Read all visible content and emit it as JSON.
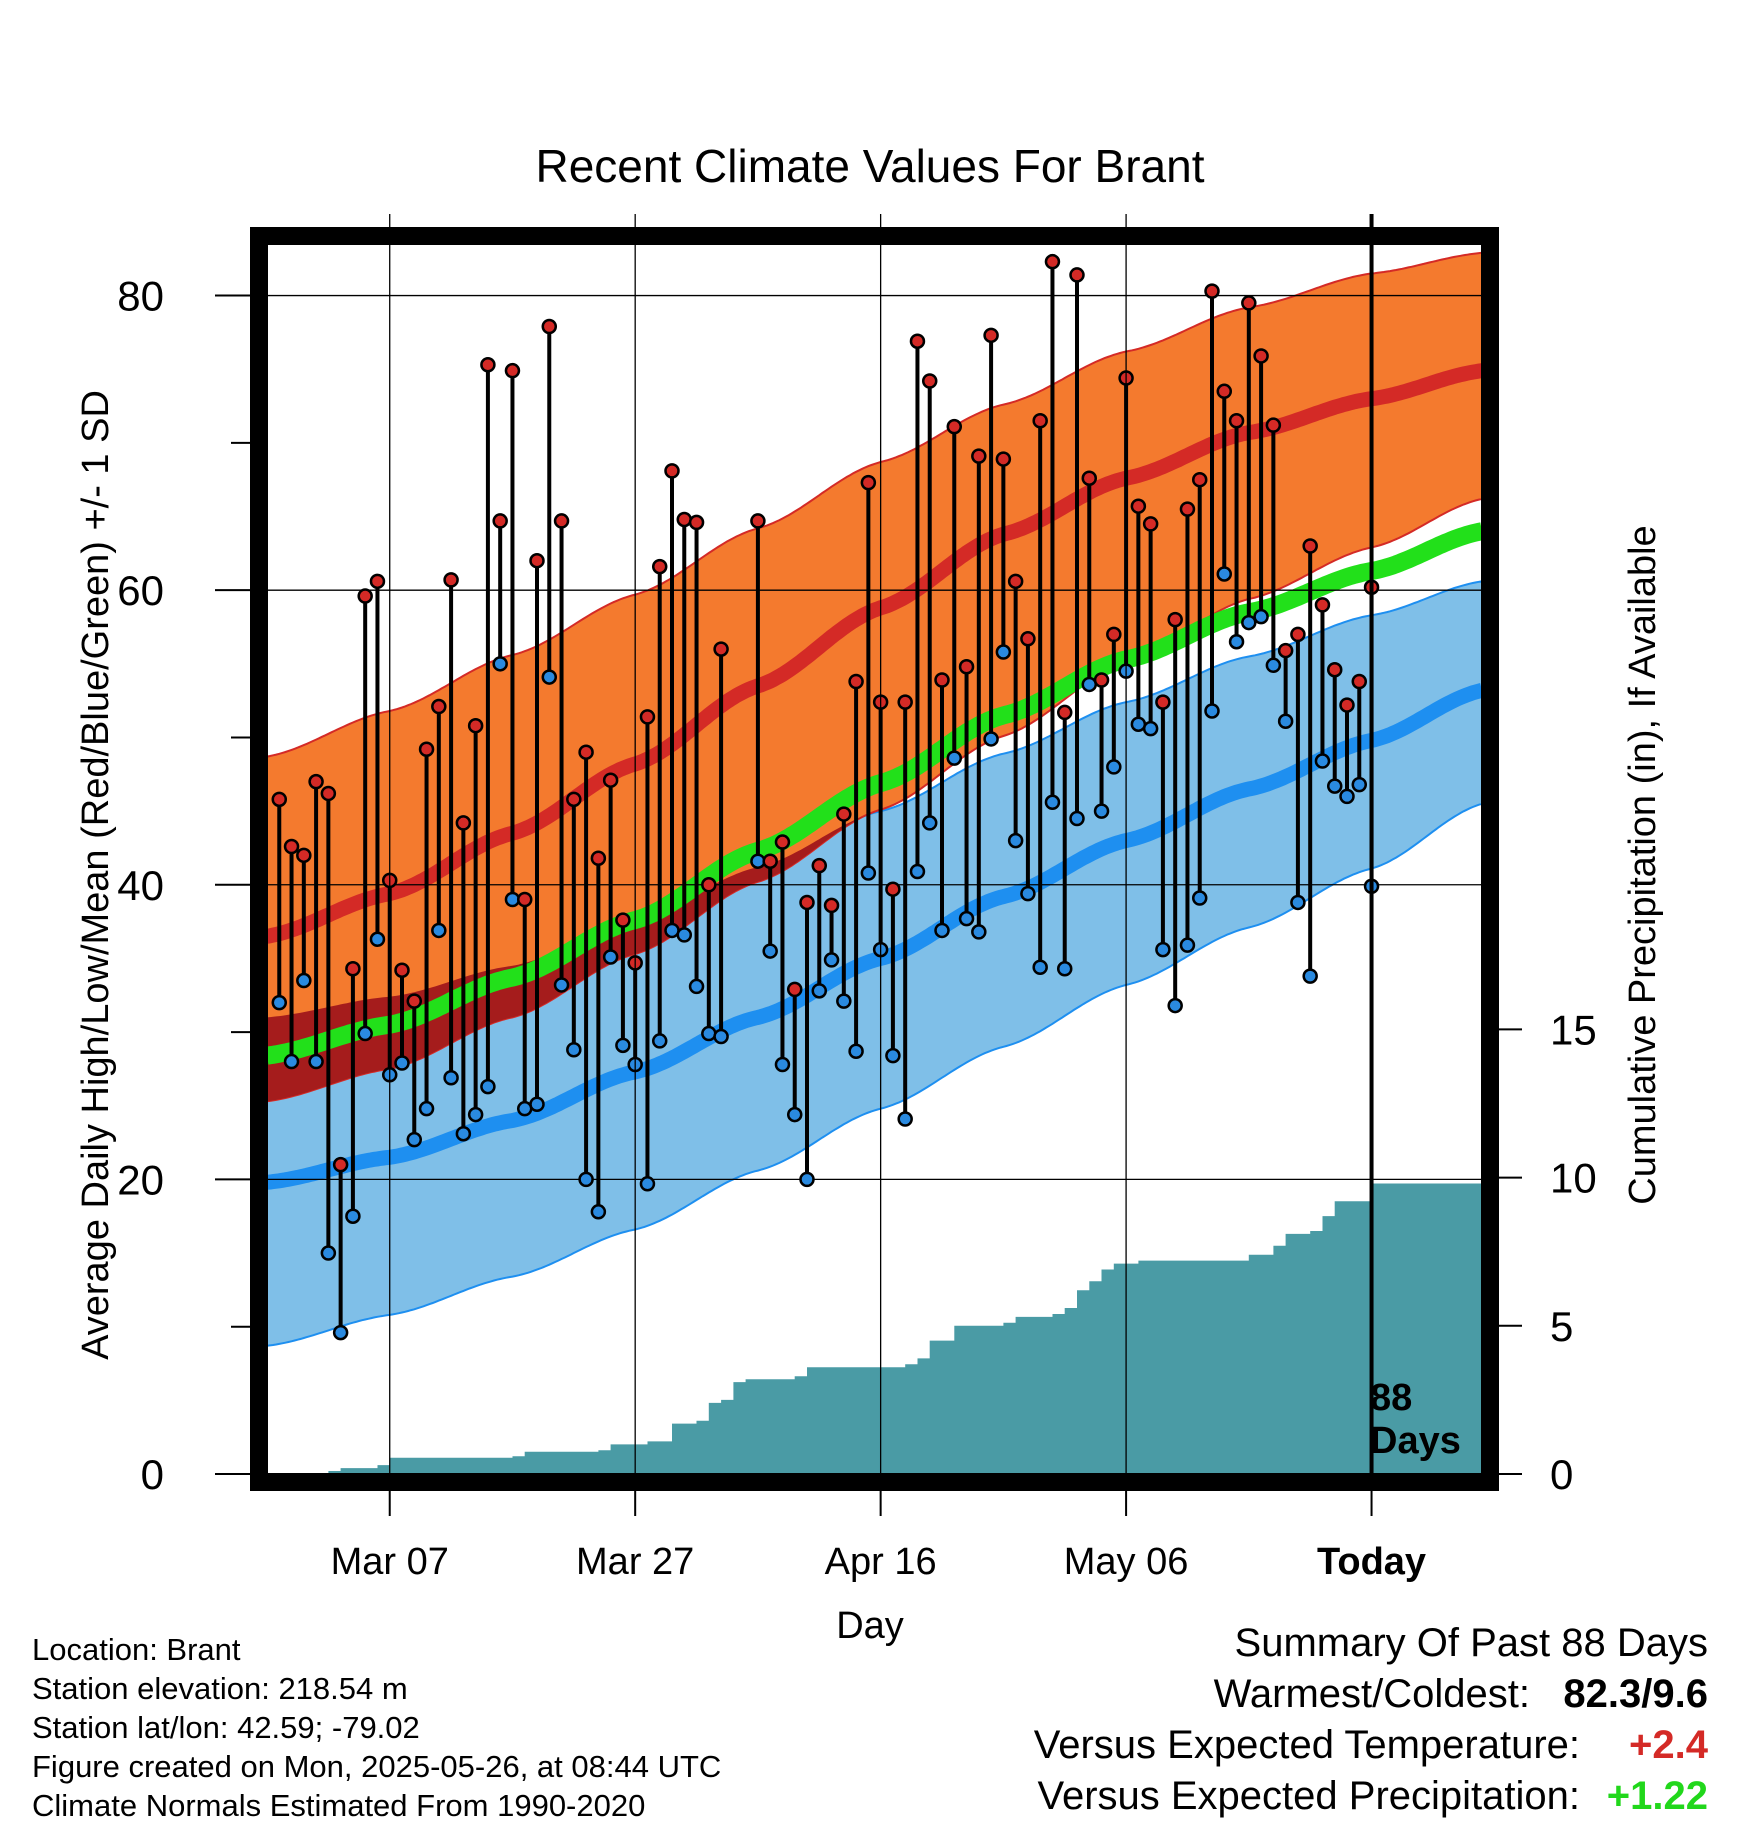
{
  "title": "Recent Climate Values For Brant",
  "y_left_label": "Average Daily High/Low/Mean (Red/Blue/Green) +/- 1 SD",
  "y_right_label": "Cumulative Precipitation (in), If Available",
  "x_label": "Day",
  "today_label": "Today",
  "days_label_num": "88",
  "days_label_word": "Days",
  "colors": {
    "high_band": "#f47a2e",
    "high_line": "#d42a26",
    "low_band": "#7fbfe8",
    "low_line": "#1e8ff0",
    "mean_line": "#22e01a",
    "overlap": "#a51c1c",
    "precip": "#4a9ba5",
    "high_point": "#d42a26",
    "low_point": "#2a8ae0",
    "positive_temp": "#d42a26",
    "positive_precip": "#21d71b"
  },
  "footer": {
    "location": "Location: Brant",
    "elevation": "Station elevation: 218.54 m",
    "latlon": "Station lat/lon: 42.59; -79.02",
    "created": "Figure created on Mon, 2025-05-26, at 08:44 UTC",
    "normals": "Climate Normals Estimated From 1990-2020"
  },
  "summary": {
    "heading": "Summary Of Past 88 Days",
    "warm_cold_label": "Warmest/Coldest:",
    "warm_cold_value": "82.3/9.6",
    "temp_label": "Versus Expected Temperature:",
    "temp_value": "+2.4",
    "precip_label": "Versus Expected Precipitation:",
    "precip_value": "+1.22"
  },
  "chart_data": {
    "type": "line",
    "x_axis": {
      "ticks": [
        {
          "date": "2025-03-07",
          "label": "Mar 07"
        },
        {
          "date": "2025-03-27",
          "label": "Mar 27"
        },
        {
          "date": "2025-04-16",
          "label": "Apr 16"
        },
        {
          "date": "2025-05-06",
          "label": "May 06"
        },
        {
          "date": "2025-05-26",
          "label": "Today"
        }
      ],
      "range": [
        "2025-02-25",
        "2025-06-04"
      ]
    },
    "y_axis": {
      "ticks": [
        0,
        20,
        40,
        60,
        80
      ],
      "range": [
        0,
        83.5
      ]
    },
    "y2_axis": {
      "ticks": [
        0,
        5,
        10,
        15
      ],
      "range": [
        0,
        41.5
      ]
    },
    "grid": true,
    "normals": {
      "dates": [
        "2025-02-25",
        "2025-03-07",
        "2025-03-17",
        "2025-03-27",
        "2025-04-06",
        "2025-04-16",
        "2025-04-26",
        "2025-05-06",
        "2025-05-16",
        "2025-05-26",
        "2025-06-04"
      ],
      "high_mean": [
        36.5,
        39.4,
        43.5,
        48.2,
        53.5,
        58.8,
        63.8,
        67.6,
        70.7,
        73.0,
        74.9
      ],
      "high_upper": [
        48.7,
        51.8,
        55.6,
        59.7,
        64.2,
        68.7,
        72.6,
        76.2,
        79.2,
        81.5,
        82.9
      ],
      "high_lower": [
        25.3,
        27.5,
        31.0,
        35.3,
        40.2,
        45.1,
        50.1,
        55.1,
        59.4,
        62.9,
        66.2
      ],
      "low_mean": [
        19.8,
        21.5,
        24.0,
        27.3,
        31.0,
        35.0,
        39.2,
        43.0,
        46.5,
        49.8,
        53.2
      ],
      "low_upper": [
        31.0,
        32.4,
        34.5,
        37.5,
        41.2,
        45.0,
        48.9,
        52.4,
        55.5,
        58.3,
        60.6
      ],
      "low_lower": [
        8.7,
        10.8,
        13.4,
        16.6,
        20.6,
        24.8,
        29.0,
        33.2,
        37.1,
        41.1,
        45.5
      ],
      "mean_line": [
        28.4,
        30.5,
        33.7,
        37.6,
        42.3,
        46.9,
        51.5,
        55.3,
        58.5,
        61.3,
        64.0
      ]
    },
    "daily": [
      {
        "date": "2025-02-26",
        "high": 45.8,
        "low": 32.0
      },
      {
        "date": "2025-02-27",
        "high": 42.6,
        "low": 28.0
      },
      {
        "date": "2025-02-28",
        "high": 42.0,
        "low": 33.5
      },
      {
        "date": "2025-03-01",
        "high": 47.0,
        "low": 28.0
      },
      {
        "date": "2025-03-02",
        "high": 46.2,
        "low": 15.0
      },
      {
        "date": "2025-03-03",
        "high": 21.0,
        "low": 9.6
      },
      {
        "date": "2025-03-04",
        "high": 34.3,
        "low": 17.5
      },
      {
        "date": "2025-03-05",
        "high": 59.6,
        "low": 29.9
      },
      {
        "date": "2025-03-06",
        "high": 60.6,
        "low": 36.3
      },
      {
        "date": "2025-03-07",
        "high": 40.3,
        "low": 27.1
      },
      {
        "date": "2025-03-08",
        "high": 34.2,
        "low": 27.9
      },
      {
        "date": "2025-03-09",
        "high": 32.1,
        "low": 22.7
      },
      {
        "date": "2025-03-10",
        "high": 49.2,
        "low": 24.8
      },
      {
        "date": "2025-03-11",
        "high": 52.1,
        "low": 36.9
      },
      {
        "date": "2025-03-12",
        "high": 60.7,
        "low": 26.9
      },
      {
        "date": "2025-03-13",
        "high": 44.2,
        "low": 23.1
      },
      {
        "date": "2025-03-14",
        "high": 50.8,
        "low": 24.4
      },
      {
        "date": "2025-03-15",
        "high": 75.3,
        "low": 26.3
      },
      {
        "date": "2025-03-16",
        "high": 64.7,
        "low": 55.0
      },
      {
        "date": "2025-03-17",
        "high": 74.9,
        "low": 39.0
      },
      {
        "date": "2025-03-18",
        "high": 39.0,
        "low": 24.8
      },
      {
        "date": "2025-03-19",
        "high": 62.0,
        "low": 25.1
      },
      {
        "date": "2025-03-20",
        "high": 77.9,
        "low": 54.1
      },
      {
        "date": "2025-03-21",
        "high": 64.7,
        "low": 33.2
      },
      {
        "date": "2025-03-22",
        "high": 45.8,
        "low": 28.8
      },
      {
        "date": "2025-03-23",
        "high": 49.0,
        "low": 20.0
      },
      {
        "date": "2025-03-24",
        "high": 41.8,
        "low": 17.8
      },
      {
        "date": "2025-03-25",
        "high": 47.1,
        "low": 35.1
      },
      {
        "date": "2025-03-26",
        "high": 37.6,
        "low": 29.1
      },
      {
        "date": "2025-03-27",
        "high": 34.7,
        "low": 27.8
      },
      {
        "date": "2025-03-28",
        "high": 51.4,
        "low": 19.7
      },
      {
        "date": "2025-03-29",
        "high": 61.6,
        "low": 29.4
      },
      {
        "date": "2025-03-30",
        "high": 68.1,
        "low": 36.9
      },
      {
        "date": "2025-03-31",
        "high": 64.8,
        "low": 36.6
      },
      {
        "date": "2025-04-01",
        "high": 64.6,
        "low": 33.1
      },
      {
        "date": "2025-04-02",
        "high": 40.0,
        "low": 29.9
      },
      {
        "date": "2025-04-03",
        "high": 56.0,
        "low": 29.7
      },
      {
        "date": "2025-04-06",
        "high": 64.7,
        "low": 41.6
      },
      {
        "date": "2025-04-07",
        "high": 41.6,
        "low": 35.5
      },
      {
        "date": "2025-04-08",
        "high": 42.9,
        "low": 27.8
      },
      {
        "date": "2025-04-09",
        "high": 32.9,
        "low": 24.4
      },
      {
        "date": "2025-04-10",
        "high": 38.8,
        "low": 20.0
      },
      {
        "date": "2025-04-11",
        "high": 41.3,
        "low": 32.8
      },
      {
        "date": "2025-04-12",
        "high": 38.6,
        "low": 34.9
      },
      {
        "date": "2025-04-13",
        "high": 44.8,
        "low": 32.1
      },
      {
        "date": "2025-04-14",
        "high": 53.8,
        "low": 28.7
      },
      {
        "date": "2025-04-15",
        "high": 67.3,
        "low": 40.8
      },
      {
        "date": "2025-04-16",
        "high": 52.4,
        "low": 35.6
      },
      {
        "date": "2025-04-17",
        "high": 39.7,
        "low": 28.4
      },
      {
        "date": "2025-04-18",
        "high": 52.4,
        "low": 24.1
      },
      {
        "date": "2025-04-19",
        "high": 76.9,
        "low": 40.9
      },
      {
        "date": "2025-04-20",
        "high": 74.2,
        "low": 44.2
      },
      {
        "date": "2025-04-21",
        "high": 53.9,
        "low": 36.9
      },
      {
        "date": "2025-04-22",
        "high": 71.1,
        "low": 48.6
      },
      {
        "date": "2025-04-23",
        "high": 54.8,
        "low": 37.7
      },
      {
        "date": "2025-04-24",
        "high": 69.1,
        "low": 36.8
      },
      {
        "date": "2025-04-25",
        "high": 77.3,
        "low": 49.9
      },
      {
        "date": "2025-04-26",
        "high": 68.9,
        "low": 55.8
      },
      {
        "date": "2025-04-27",
        "high": 60.6,
        "low": 43.0
      },
      {
        "date": "2025-04-28",
        "high": 56.7,
        "low": 39.4
      },
      {
        "date": "2025-04-29",
        "high": 71.5,
        "low": 34.4
      },
      {
        "date": "2025-04-30",
        "high": 82.3,
        "low": 45.6
      },
      {
        "date": "2025-05-01",
        "high": 51.7,
        "low": 34.3
      },
      {
        "date": "2025-05-02",
        "high": 81.4,
        "low": 44.5
      },
      {
        "date": "2025-05-03",
        "high": 67.6,
        "low": 53.6
      },
      {
        "date": "2025-05-04",
        "high": 53.9,
        "low": 45.0
      },
      {
        "date": "2025-05-05",
        "high": 57.0,
        "low": 48.0
      },
      {
        "date": "2025-05-06",
        "high": 74.4,
        "low": 54.5
      },
      {
        "date": "2025-05-07",
        "high": 65.7,
        "low": 50.9
      },
      {
        "date": "2025-05-08",
        "high": 64.5,
        "low": 50.6
      },
      {
        "date": "2025-05-09",
        "high": 52.4,
        "low": 35.6
      },
      {
        "date": "2025-05-10",
        "high": 58.0,
        "low": 31.8
      },
      {
        "date": "2025-05-11",
        "high": 65.5,
        "low": 35.9
      },
      {
        "date": "2025-05-12",
        "high": 67.5,
        "low": 39.1
      },
      {
        "date": "2025-05-13",
        "high": 80.3,
        "low": 51.8
      },
      {
        "date": "2025-05-14",
        "high": 73.5,
        "low": 61.1
      },
      {
        "date": "2025-05-15",
        "high": 71.5,
        "low": 56.5
      },
      {
        "date": "2025-05-16",
        "high": 79.5,
        "low": 57.8
      },
      {
        "date": "2025-05-17",
        "high": 75.9,
        "low": 58.2
      },
      {
        "date": "2025-05-18",
        "high": 71.2,
        "low": 54.9
      },
      {
        "date": "2025-05-19",
        "high": 55.9,
        "low": 51.1
      },
      {
        "date": "2025-05-20",
        "high": 57.0,
        "low": 38.8
      },
      {
        "date": "2025-05-21",
        "high": 63.0,
        "low": 33.8
      },
      {
        "date": "2025-05-22",
        "high": 59.0,
        "low": 48.4
      },
      {
        "date": "2025-05-23",
        "high": 54.6,
        "low": 46.7
      },
      {
        "date": "2025-05-24",
        "high": 52.2,
        "low": 46.0
      },
      {
        "date": "2025-05-25",
        "high": 53.8,
        "low": 46.8
      },
      {
        "date": "2025-05-26",
        "high": 60.2,
        "low": 39.9
      }
    ],
    "cumulative_precip": {
      "dates": [
        "2025-02-26",
        "2025-03-02",
        "2025-03-03",
        "2025-03-06",
        "2025-03-07",
        "2025-03-17",
        "2025-03-18",
        "2025-03-24",
        "2025-03-25",
        "2025-03-27",
        "2025-03-28",
        "2025-03-30",
        "2025-04-01",
        "2025-04-02",
        "2025-04-03",
        "2025-04-04",
        "2025-04-05",
        "2025-04-09",
        "2025-04-10",
        "2025-04-18",
        "2025-04-19",
        "2025-04-20",
        "2025-04-22",
        "2025-04-26",
        "2025-04-27",
        "2025-04-30",
        "2025-05-01",
        "2025-05-02",
        "2025-05-03",
        "2025-05-04",
        "2025-05-05",
        "2025-05-07",
        "2025-05-16",
        "2025-05-18",
        "2025-05-19",
        "2025-05-21",
        "2025-05-22",
        "2025-05-23",
        "2025-05-26",
        "2025-06-04"
      ],
      "values": [
        0.0,
        0.1,
        0.2,
        0.3,
        0.55,
        0.6,
        0.75,
        0.8,
        1.0,
        1.0,
        1.1,
        1.7,
        1.8,
        2.4,
        2.5,
        3.1,
        3.2,
        3.3,
        3.6,
        3.7,
        3.9,
        4.5,
        5.0,
        5.1,
        5.3,
        5.4,
        5.6,
        6.2,
        6.5,
        6.9,
        7.1,
        7.2,
        7.4,
        7.7,
        8.1,
        8.2,
        8.7,
        9.2,
        9.8,
        9.8
      ]
    }
  }
}
